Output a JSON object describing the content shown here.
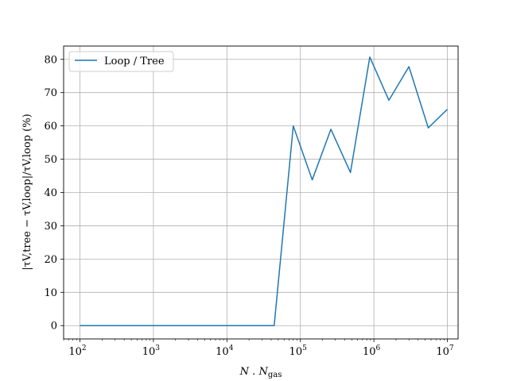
{
  "chart_data": {
    "type": "line",
    "xscale": "log",
    "xlim": [
      60,
      14000000
    ],
    "ylim": [
      -4,
      84
    ],
    "grid": true,
    "legend_position": "upper-left",
    "xlabel_prefix": "N . N",
    "xlabel_subscript": "gas",
    "ylabel": "|τV,tree − τV,loop|/τV,loop (%)",
    "x_tick_labels": [
      "10",
      "10",
      "10",
      "10",
      "10",
      "10"
    ],
    "x_tick_exponents": [
      "2",
      "3",
      "4",
      "5",
      "6",
      "7"
    ],
    "x_tick_values": [
      100,
      1000,
      10000,
      100000,
      1000000,
      10000000
    ],
    "y_ticks": [
      0,
      10,
      20,
      30,
      40,
      50,
      60,
      70,
      80
    ],
    "series": [
      {
        "name": "Loop / Tree",
        "color": "#1f77b4",
        "x": [
          100,
          44000,
          80000,
          145000,
          260000,
          480000,
          880000,
          1600000,
          3000000,
          5500000,
          10000000
        ],
        "y": [
          0,
          0,
          60,
          43.8,
          59,
          46,
          80.7,
          67.7,
          77.8,
          59.4,
          65
        ]
      }
    ]
  }
}
